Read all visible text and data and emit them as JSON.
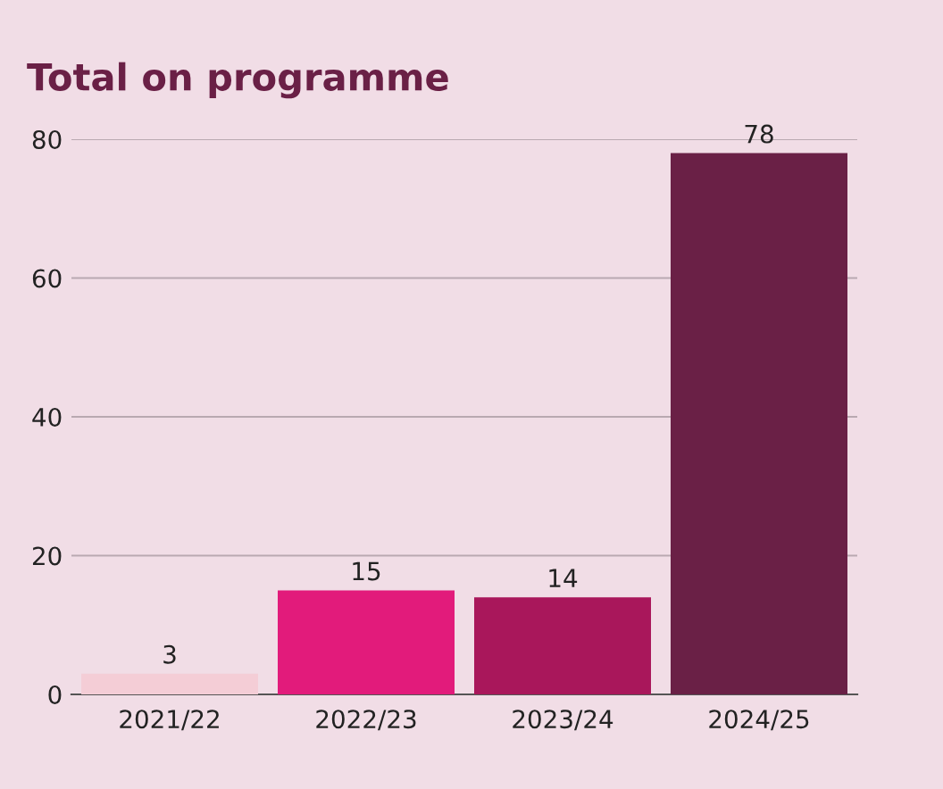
{
  "chart_data": {
    "type": "bar",
    "title": "Total on programme",
    "categories": [
      "2021/22",
      "2022/23",
      "2023/24",
      "2024/25"
    ],
    "values": [
      3,
      15,
      14,
      78
    ],
    "colors": [
      "#f4cdd6",
      "#e21b7b",
      "#a9175b",
      "#6a2046"
    ],
    "ylim": [
      0,
      80
    ],
    "yticks": [
      0,
      20,
      40,
      60,
      80
    ],
    "grid": "y",
    "data_labels": true
  }
}
